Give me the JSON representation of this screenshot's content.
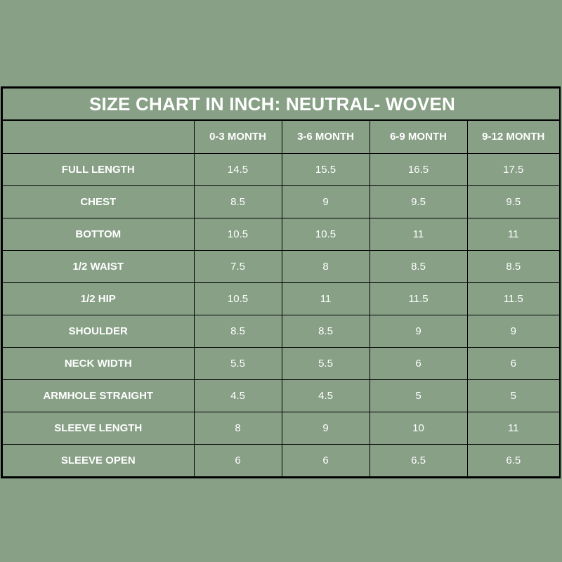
{
  "title": "SIZE CHART IN INCH: NEUTRAL- WOVEN",
  "columns": [
    "",
    "0-3 MONTH",
    "3-6 MONTH",
    "6-9 MONTH",
    "9-12 MONTH"
  ],
  "rows": [
    {
      "label": "FULL LENGTH",
      "values": [
        "14.5",
        "15.5",
        "16.5",
        "17.5"
      ]
    },
    {
      "label": "CHEST",
      "values": [
        "8.5",
        "9",
        "9.5",
        "9.5"
      ]
    },
    {
      "label": "BOTTOM",
      "values": [
        "10.5",
        "10.5",
        "11",
        "11"
      ]
    },
    {
      "label": "1/2 WAIST",
      "values": [
        "7.5",
        "8",
        "8.5",
        "8.5"
      ]
    },
    {
      "label": "1/2 HIP",
      "values": [
        "10.5",
        "11",
        "11.5",
        "11.5"
      ]
    },
    {
      "label": "SHOULDER",
      "values": [
        "8.5",
        "8.5",
        "9",
        "9"
      ]
    },
    {
      "label": "NECK WIDTH",
      "values": [
        "5.5",
        "5.5",
        "6",
        "6"
      ]
    },
    {
      "label": "ARMHOLE STRAIGHT",
      "values": [
        "4.5",
        "4.5",
        "5",
        "5"
      ]
    },
    {
      "label": "SLEEVE LENGTH",
      "values": [
        "8",
        "9",
        "10",
        "11"
      ]
    },
    {
      "label": "SLEEVE OPEN",
      "values": [
        "6",
        "6",
        "6.5",
        "6.5"
      ]
    }
  ],
  "colors": {
    "background": "#87a086",
    "text": "#ffffff",
    "border": "#000000"
  }
}
